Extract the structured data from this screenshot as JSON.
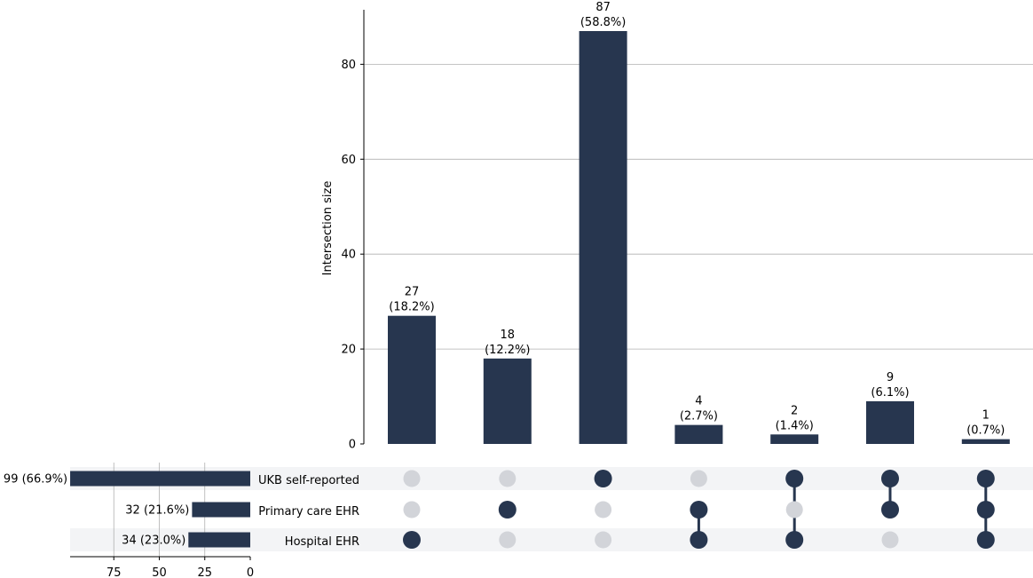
{
  "chart_data": {
    "type": "bar",
    "subtype": "upset",
    "ylabel": "Intersection size",
    "yticks": [
      0,
      20,
      40,
      60,
      80
    ],
    "ylim": [
      0,
      91
    ],
    "grid": true,
    "bar_color": "#27364f",
    "grid_color": "#b0b0b0",
    "inactive_dot_color": "#d2d4d9",
    "stripe_color": "#f3f4f6",
    "sets": [
      {
        "name": "UKB self-reported",
        "size": 99,
        "label": "99 (66.9%)"
      },
      {
        "name": "Primary care EHR",
        "size": 32,
        "label": "32 (21.6%)"
      },
      {
        "name": "Hospital EHR",
        "size": 34,
        "label": "34 (23.0%)"
      }
    ],
    "set_size_ticks": [
      75,
      50,
      25,
      0
    ],
    "set_size_max": 99,
    "intersections": [
      {
        "members": [
          false,
          false,
          true
        ],
        "value": 27,
        "label": "27",
        "pct": "(18.2%)"
      },
      {
        "members": [
          false,
          true,
          false
        ],
        "value": 18,
        "label": "18",
        "pct": "(12.2%)"
      },
      {
        "members": [
          true,
          false,
          false
        ],
        "value": 87,
        "label": "87",
        "pct": "(58.8%)"
      },
      {
        "members": [
          false,
          true,
          true
        ],
        "value": 4,
        "label": "4",
        "pct": "(2.7%)"
      },
      {
        "members": [
          true,
          false,
          true
        ],
        "value": 2,
        "label": "2",
        "pct": "(1.4%)"
      },
      {
        "members": [
          true,
          true,
          false
        ],
        "value": 9,
        "label": "9",
        "pct": "(6.1%)"
      },
      {
        "members": [
          true,
          true,
          true
        ],
        "value": 1,
        "label": "1",
        "pct": "(0.7%)"
      }
    ]
  }
}
